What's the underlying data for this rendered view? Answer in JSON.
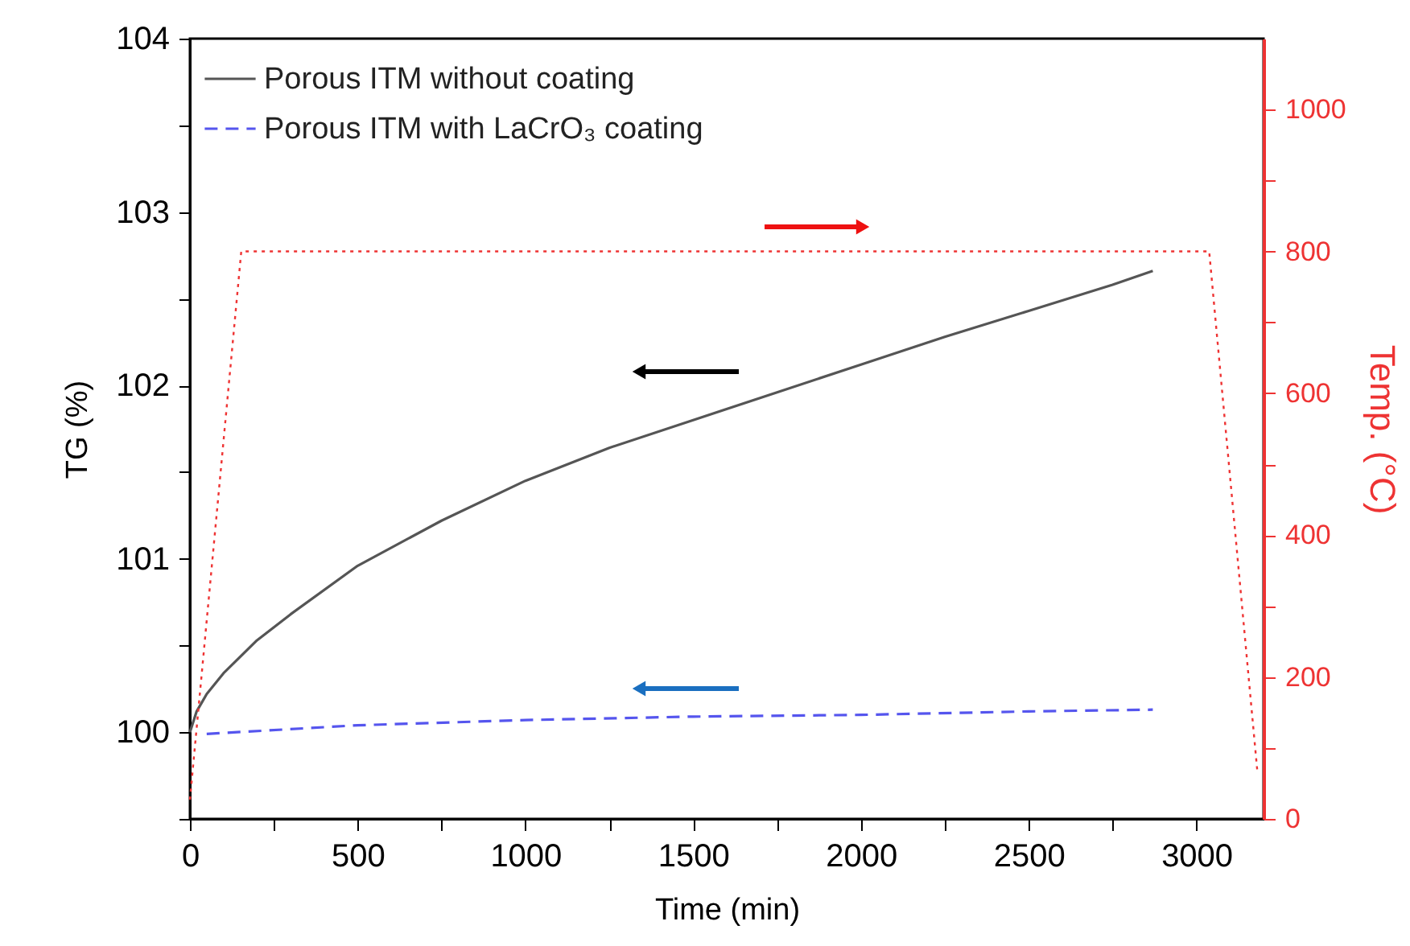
{
  "chart_data": {
    "type": "line",
    "xlabel": "Time (min)",
    "ylabel": "TG (%)",
    "y2label": "Temp. (°C)",
    "xlim": [
      0,
      3200
    ],
    "ylim": [
      99.5,
      104
    ],
    "y2lim": [
      0,
      1100
    ],
    "xticks": [
      0,
      {
        "value": 250,
        "label": null
      },
      500,
      {
        "value": 750,
        "label": null
      },
      1000,
      {
        "value": 1250,
        "label": null
      },
      1500,
      {
        "value": 1750,
        "label": null
      },
      2000,
      {
        "value": 2250,
        "label": null
      },
      2500,
      {
        "value": 2750,
        "label": null
      },
      3000
    ],
    "yticks": [
      {
        "value": 99.5,
        "label": null
      },
      100,
      {
        "value": 100.5,
        "label": null
      },
      101,
      {
        "value": 101.5,
        "label": null
      },
      102,
      {
        "value": 102.5,
        "label": null
      },
      103,
      {
        "value": 103.5,
        "label": null
      },
      104
    ],
    "y2ticks": [
      0,
      {
        "value": 100,
        "label": null
      },
      200,
      {
        "value": 300,
        "label": null
      },
      400,
      {
        "value": 500,
        "label": null
      },
      600,
      {
        "value": 700,
        "label": null
      },
      800,
      {
        "value": 900,
        "label": null
      },
      1000
    ],
    "legend": "top left",
    "grid": false,
    "series": [
      {
        "name": "Porous ITM without coating",
        "color": "#555555",
        "line_style": "solid",
        "x": [
          0,
          20,
          50,
          100,
          200,
          300,
          500,
          750,
          1000,
          1250,
          1500,
          1750,
          2000,
          2250,
          2500,
          2750,
          2870
        ],
        "values": [
          100,
          100.12,
          100.22,
          100.34,
          100.53,
          100.68,
          100.96,
          101.22,
          101.45,
          101.64,
          101.8,
          101.96,
          102.12,
          102.28,
          102.43,
          102.58,
          102.66
        ]
      },
      {
        "name": "Porous ITM with LaCrO₃ coating",
        "color": "#5555ee",
        "line_style": "dashed",
        "x": [
          50,
          500,
          1000,
          1500,
          2000,
          2500,
          2870
        ],
        "values": [
          99.99,
          100.04,
          100.07,
          100.09,
          100.1,
          100.12,
          100.13
        ]
      },
      {
        "color": "#ee3333",
        "line_style": "dotted",
        "axis": "y2",
        "x": [
          0,
          153,
          3038,
          3182
        ],
        "values": [
          27,
          800,
          800,
          65
        ]
      }
    ]
  }
}
